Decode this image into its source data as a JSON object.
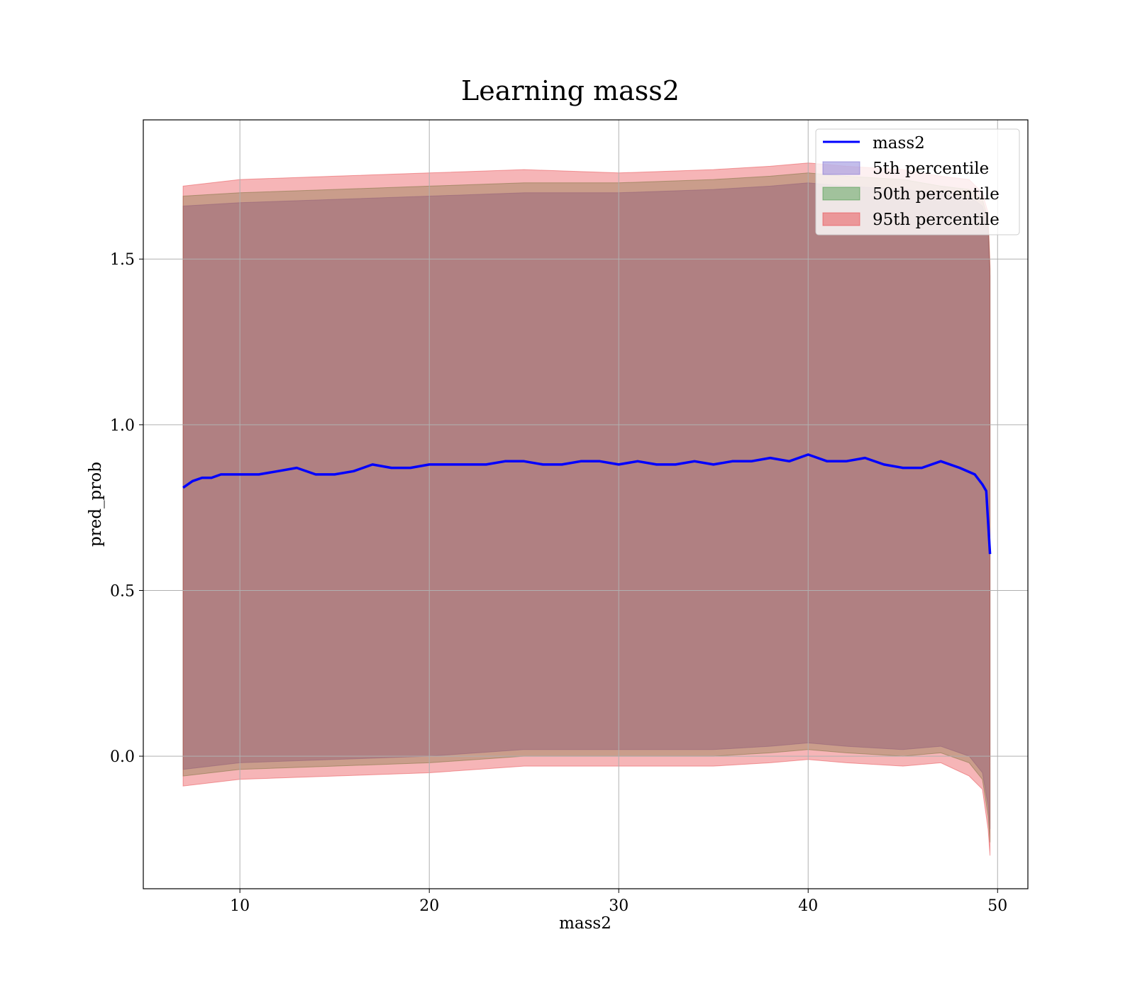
{
  "chart_data": {
    "type": "line",
    "title": "Learning mass2",
    "xlabel": "mass2",
    "ylabel": "pred_prob",
    "xlim": [
      4.9,
      51.6
    ],
    "ylim": [
      -0.4,
      1.92
    ],
    "x_ticks": [
      10,
      20,
      30,
      40,
      50
    ],
    "y_ticks": [
      0.0,
      0.5,
      1.0,
      1.5
    ],
    "x_tick_labels": [
      "10",
      "20",
      "30",
      "40",
      "50"
    ],
    "y_tick_labels": [
      "0.0",
      "0.5",
      "1.0",
      "1.5"
    ],
    "grid": true,
    "legend_position": "upper right",
    "line_series": {
      "name": "mass2",
      "color": "#0000ff",
      "x": [
        7.0,
        7.5,
        8.0,
        8.5,
        9.0,
        10.0,
        11.0,
        12.0,
        13.0,
        14.0,
        15.0,
        16.0,
        17.0,
        18.0,
        19.0,
        20.0,
        21.0,
        22.0,
        23.0,
        24.0,
        25.0,
        26.0,
        27.0,
        28.0,
        29.0,
        30.0,
        31.0,
        32.0,
        33.0,
        34.0,
        35.0,
        36.0,
        37.0,
        38.0,
        39.0,
        40.0,
        41.0,
        42.0,
        43.0,
        44.0,
        45.0,
        46.0,
        47.0,
        48.0,
        48.8,
        49.2,
        49.4,
        49.6
      ],
      "y": [
        0.81,
        0.83,
        0.84,
        0.84,
        0.85,
        0.85,
        0.85,
        0.86,
        0.87,
        0.85,
        0.85,
        0.86,
        0.88,
        0.87,
        0.87,
        0.88,
        0.88,
        0.88,
        0.88,
        0.89,
        0.89,
        0.88,
        0.88,
        0.89,
        0.89,
        0.88,
        0.89,
        0.88,
        0.88,
        0.89,
        0.88,
        0.89,
        0.89,
        0.9,
        0.89,
        0.91,
        0.89,
        0.89,
        0.9,
        0.88,
        0.87,
        0.87,
        0.89,
        0.87,
        0.85,
        0.82,
        0.8,
        0.61
      ]
    },
    "band_series": [
      {
        "name": "5th percentile",
        "color": "#6a5acd",
        "x": [
          7.0,
          10.0,
          15.0,
          20.0,
          25.0,
          30.0,
          35.0,
          38.0,
          40.0,
          42.0,
          45.0,
          47.0,
          48.5,
          49.2,
          49.5,
          49.6
        ],
        "upper": [
          1.66,
          1.67,
          1.68,
          1.69,
          1.7,
          1.7,
          1.71,
          1.72,
          1.73,
          1.72,
          1.71,
          1.7,
          1.69,
          1.66,
          1.6,
          1.45
        ],
        "lower": [
          -0.04,
          -0.02,
          -0.01,
          0.0,
          0.02,
          0.02,
          0.02,
          0.03,
          0.04,
          0.03,
          0.02,
          0.03,
          0.0,
          -0.05,
          -0.15,
          -0.22
        ]
      },
      {
        "name": "50th percentile",
        "color": "#2e8b2e",
        "x": [
          7.0,
          10.0,
          15.0,
          20.0,
          25.0,
          30.0,
          35.0,
          38.0,
          40.0,
          42.0,
          45.0,
          47.0,
          48.5,
          49.2,
          49.5,
          49.6
        ],
        "upper": [
          1.69,
          1.7,
          1.71,
          1.72,
          1.73,
          1.73,
          1.74,
          1.75,
          1.76,
          1.75,
          1.74,
          1.72,
          1.71,
          1.68,
          1.62,
          1.47
        ],
        "lower": [
          -0.06,
          -0.04,
          -0.03,
          -0.02,
          0.0,
          0.0,
          0.0,
          0.01,
          0.02,
          0.01,
          0.0,
          0.01,
          -0.02,
          -0.07,
          -0.18,
          -0.26
        ]
      },
      {
        "name": "95th percentile",
        "color": "#e8474b",
        "x": [
          7.0,
          10.0,
          15.0,
          20.0,
          25.0,
          30.0,
          35.0,
          38.0,
          40.0,
          42.0,
          45.0,
          47.0,
          48.5,
          49.2,
          49.5,
          49.6
        ],
        "upper": [
          1.72,
          1.74,
          1.75,
          1.76,
          1.77,
          1.76,
          1.77,
          1.78,
          1.79,
          1.78,
          1.77,
          1.75,
          1.74,
          1.7,
          1.64,
          1.48
        ],
        "lower": [
          -0.09,
          -0.07,
          -0.06,
          -0.05,
          -0.03,
          -0.03,
          -0.03,
          -0.02,
          -0.01,
          -0.02,
          -0.03,
          -0.02,
          -0.06,
          -0.1,
          -0.22,
          -0.3
        ]
      }
    ]
  }
}
